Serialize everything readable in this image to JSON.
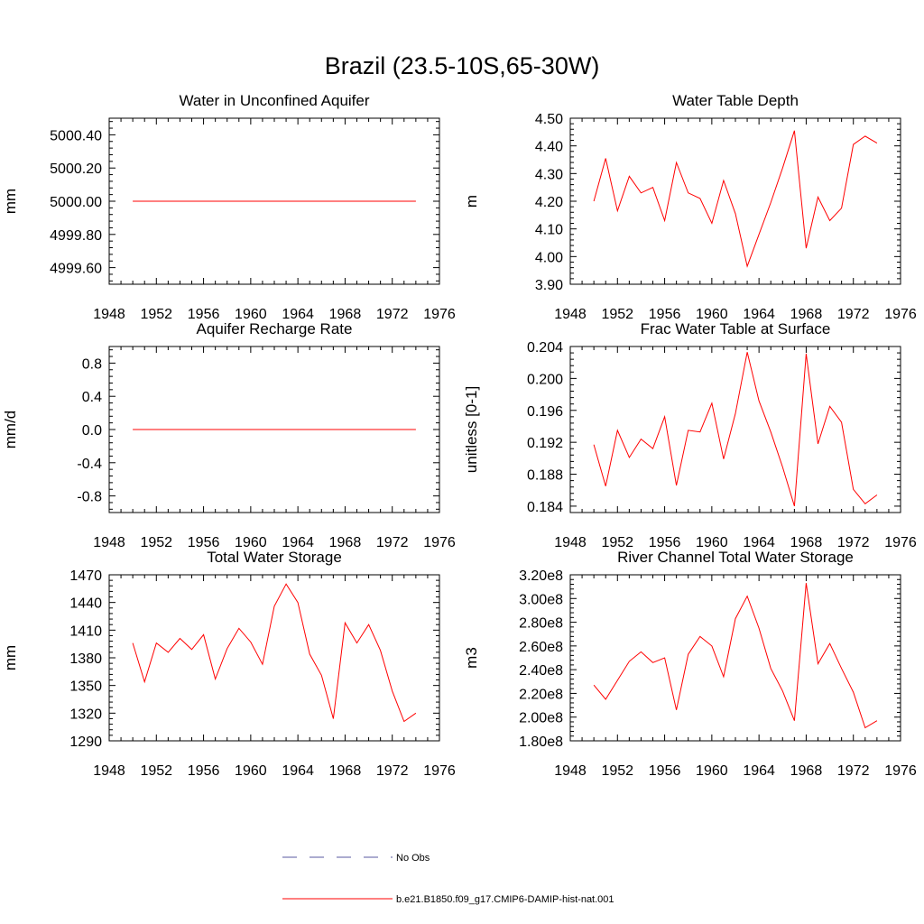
{
  "figure": {
    "title": "Brazil (23.5-10S,65-30W)"
  },
  "legend": {
    "items": [
      {
        "label": "No Obs",
        "color": "#5a5aa0",
        "style": "dashed"
      },
      {
        "label": "b.e21.B1850.f09_g17.CMIP6-DAMIP-hist-nat.001",
        "color": "#ff0000",
        "style": "solid"
      }
    ]
  },
  "chart_data": [
    {
      "type": "line",
      "title": "Water in Unconfined Aquifer",
      "ylabel": "mm",
      "xlim": [
        1948,
        1976
      ],
      "xticks": [
        "1948",
        "1952",
        "1956",
        "1960",
        "1964",
        "1968",
        "1972",
        "1976"
      ],
      "ylim": [
        4999.5,
        5000.5
      ],
      "yticks": [
        4999.6,
        4999.8,
        5000.0,
        5000.2,
        5000.4
      ],
      "ytick_labels": [
        "4999.60",
        "4999.80",
        "5000.00",
        "5000.20",
        "5000.40"
      ],
      "series": [
        {
          "name": "b.e21.B1850.f09_g17.CMIP6-DAMIP-hist-nat.001",
          "color": "#ff0000",
          "x": [
            1950,
            1951,
            1952,
            1953,
            1954,
            1955,
            1956,
            1957,
            1958,
            1959,
            1960,
            1961,
            1962,
            1963,
            1964,
            1965,
            1966,
            1967,
            1968,
            1969,
            1970,
            1971,
            1972,
            1973,
            1974
          ],
          "y": [
            5000,
            5000,
            5000,
            5000,
            5000,
            5000,
            5000,
            5000,
            5000,
            5000,
            5000,
            5000,
            5000,
            5000,
            5000,
            5000,
            5000,
            5000,
            5000,
            5000,
            5000,
            5000,
            5000,
            5000,
            5000
          ]
        }
      ]
    },
    {
      "type": "line",
      "title": "Water Table Depth",
      "ylabel": "m",
      "xlim": [
        1948,
        1976
      ],
      "xticks": [
        "1948",
        "1952",
        "1956",
        "1960",
        "1964",
        "1968",
        "1972",
        "1976"
      ],
      "ylim": [
        3.9,
        4.5
      ],
      "yticks": [
        3.9,
        4.0,
        4.1,
        4.2,
        4.3,
        4.4,
        4.5
      ],
      "ytick_labels": [
        "3.90",
        "4.00",
        "4.10",
        "4.20",
        "4.30",
        "4.40",
        "4.50"
      ],
      "series": [
        {
          "name": "b.e21.B1850.f09_g17.CMIP6-DAMIP-hist-nat.001",
          "color": "#ff0000",
          "x": [
            1950,
            1951,
            1952,
            1953,
            1954,
            1955,
            1956,
            1957,
            1958,
            1959,
            1960,
            1961,
            1962,
            1963,
            1964,
            1965,
            1966,
            1967,
            1968,
            1969,
            1970,
            1971,
            1972,
            1973,
            1974
          ],
          "y": [
            4.2,
            4.355,
            4.165,
            4.29,
            4.23,
            4.25,
            4.13,
            4.34,
            4.23,
            4.21,
            4.12,
            4.275,
            4.155,
            3.965,
            4.08,
            4.195,
            4.32,
            4.455,
            4.03,
            4.215,
            4.13,
            4.175,
            4.405,
            4.435,
            4.41
          ]
        }
      ]
    },
    {
      "type": "line",
      "title": "Aquifer Recharge Rate",
      "ylabel": "mm/d",
      "xlim": [
        1948,
        1976
      ],
      "xticks": [
        "1948",
        "1952",
        "1956",
        "1960",
        "1964",
        "1968",
        "1972",
        "1976"
      ],
      "ylim": [
        -1.0,
        1.0
      ],
      "yticks": [
        -0.8,
        -0.4,
        0.0,
        0.4,
        0.8
      ],
      "ytick_labels": [
        "-0.8",
        "-0.4",
        "0.0",
        "0.4",
        "0.8"
      ],
      "series": [
        {
          "name": "b.e21.B1850.f09_g17.CMIP6-DAMIP-hist-nat.001",
          "color": "#ff0000",
          "x": [
            1950,
            1951,
            1952,
            1953,
            1954,
            1955,
            1956,
            1957,
            1958,
            1959,
            1960,
            1961,
            1962,
            1963,
            1964,
            1965,
            1966,
            1967,
            1968,
            1969,
            1970,
            1971,
            1972,
            1973,
            1974
          ],
          "y": [
            0,
            0,
            0,
            0,
            0,
            0,
            0,
            0,
            0,
            0,
            0,
            0,
            0,
            0,
            0,
            0,
            0,
            0,
            0,
            0,
            0,
            0,
            0,
            0,
            0
          ]
        }
      ]
    },
    {
      "type": "line",
      "title": "Frac Water Table at Surface",
      "ylabel": "unitless [0-1]",
      "xlim": [
        1948,
        1976
      ],
      "xticks": [
        "1948",
        "1952",
        "1956",
        "1960",
        "1964",
        "1968",
        "1972",
        "1976"
      ],
      "ylim": [
        0.1832,
        0.204
      ],
      "yticks": [
        0.184,
        0.188,
        0.192,
        0.196,
        0.2,
        0.204
      ],
      "ytick_labels": [
        "0.184",
        "0.188",
        "0.192",
        "0.196",
        "0.200",
        "0.204"
      ],
      "series": [
        {
          "name": "b.e21.B1850.f09_g17.CMIP6-DAMIP-hist-nat.001",
          "color": "#ff0000",
          "x": [
            1950,
            1951,
            1952,
            1953,
            1954,
            1955,
            1956,
            1957,
            1958,
            1959,
            1960,
            1961,
            1962,
            1963,
            1964,
            1965,
            1966,
            1967,
            1968,
            1969,
            1970,
            1971,
            1972,
            1973,
            1974
          ],
          "y": [
            0.1917,
            0.1865,
            0.1935,
            0.1901,
            0.1924,
            0.1912,
            0.1952,
            0.1866,
            0.1935,
            0.1933,
            0.1969,
            0.1899,
            0.1956,
            0.2033,
            0.1972,
            0.1933,
            0.1889,
            0.184,
            0.2031,
            0.1918,
            0.1965,
            0.1945,
            0.1861,
            0.1843,
            0.1854
          ]
        }
      ]
    },
    {
      "type": "line",
      "title": "Total Water Storage",
      "ylabel": "mm",
      "xlim": [
        1948,
        1976
      ],
      "xticks": [
        "1948",
        "1952",
        "1956",
        "1960",
        "1964",
        "1968",
        "1972",
        "1976"
      ],
      "ylim": [
        1290,
        1470
      ],
      "yticks": [
        1290,
        1320,
        1350,
        1380,
        1410,
        1440,
        1470
      ],
      "ytick_labels": [
        "1290",
        "1320",
        "1350",
        "1380",
        "1410",
        "1440",
        "1470"
      ],
      "series": [
        {
          "name": "b.e21.B1850.f09_g17.CMIP6-DAMIP-hist-nat.001",
          "color": "#ff0000",
          "x": [
            1950,
            1951,
            1952,
            1953,
            1954,
            1955,
            1956,
            1957,
            1958,
            1959,
            1960,
            1961,
            1962,
            1963,
            1964,
            1965,
            1966,
            1967,
            1968,
            1969,
            1970,
            1971,
            1972,
            1973,
            1974
          ],
          "y": [
            1396,
            1354,
            1396,
            1386,
            1401,
            1389,
            1405,
            1357,
            1390,
            1412,
            1397,
            1373,
            1436,
            1460,
            1440,
            1384,
            1361,
            1314,
            1418,
            1396,
            1416,
            1388,
            1344,
            1311,
            1320
          ]
        }
      ]
    },
    {
      "type": "line",
      "title": "River Channel Total Water Storage",
      "ylabel": "m3",
      "xlim": [
        1948,
        1976
      ],
      "xticks": [
        "1948",
        "1952",
        "1956",
        "1960",
        "1964",
        "1968",
        "1972",
        "1976"
      ],
      "ylim": [
        180000000.0,
        320000000.0
      ],
      "yticks": [
        180000000.0,
        200000000.0,
        220000000.0,
        240000000.0,
        260000000.0,
        280000000.0,
        300000000.0,
        320000000.0
      ],
      "ytick_labels": [
        "1.80e8",
        "2.00e8",
        "2.20e8",
        "2.40e8",
        "2.60e8",
        "2.80e8",
        "3.00e8",
        "3.20e8"
      ],
      "series": [
        {
          "name": "b.e21.B1850.f09_g17.CMIP6-DAMIP-hist-nat.001",
          "color": "#ff0000",
          "x": [
            1950,
            1951,
            1952,
            1953,
            1954,
            1955,
            1956,
            1957,
            1958,
            1959,
            1960,
            1961,
            1962,
            1963,
            1964,
            1965,
            1966,
            1967,
            1968,
            1969,
            1970,
            1971,
            1972,
            1973,
            1974
          ],
          "y": [
            227000000.0,
            215000000.0,
            231000000.0,
            247000000.0,
            255000000.0,
            246000000.0,
            250000000.0,
            206000000.0,
            253000000.0,
            268000000.0,
            260000000.0,
            234000000.0,
            283000000.0,
            302000000.0,
            275000000.0,
            241000000.0,
            222000000.0,
            197000000.0,
            313000000.0,
            245000000.0,
            262000000.0,
            241000000.0,
            221000000.0,
            191000000.0,
            197000000.0
          ]
        }
      ]
    }
  ]
}
